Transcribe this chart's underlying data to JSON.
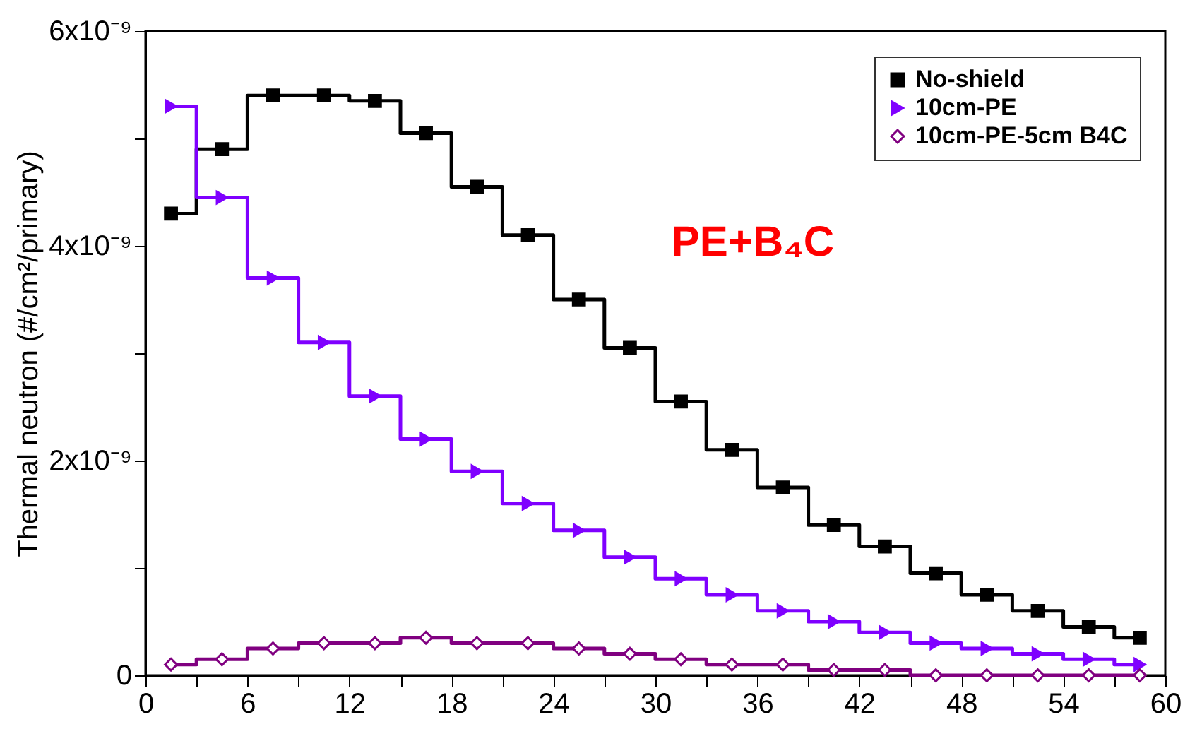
{
  "chart_data": {
    "type": "step",
    "ylabel": "Thermal neutron (#/cm²/primary)",
    "x": [
      1.5,
      4.5,
      7.5,
      10.5,
      13.5,
      16.5,
      19.5,
      22.5,
      25.5,
      28.5,
      31.5,
      34.5,
      37.5,
      40.5,
      43.5,
      46.5,
      49.5,
      52.5,
      55.5,
      58.5
    ],
    "series": [
      {
        "name": "No-shield",
        "color": "#000000",
        "marker": "square",
        "values": [
          4.3e-09,
          4.9e-09,
          5.4e-09,
          5.4e-09,
          5.35e-09,
          5.05e-09,
          4.55e-09,
          4.1e-09,
          3.5e-09,
          3.05e-09,
          2.55e-09,
          2.1e-09,
          1.75e-09,
          1.4e-09,
          1.2e-09,
          9.5e-10,
          7.5e-10,
          6e-10,
          4.5e-10,
          3.5e-10
        ]
      },
      {
        "name": "10cm-PE",
        "color": "#7f00ff",
        "marker": "triangle",
        "values": [
          5.3e-09,
          4.45e-09,
          3.7e-09,
          3.1e-09,
          2.6e-09,
          2.2e-09,
          1.9e-09,
          1.6e-09,
          1.35e-09,
          1.1e-09,
          9e-10,
          7.5e-10,
          6e-10,
          5e-10,
          4e-10,
          3e-10,
          2.5e-10,
          2e-10,
          1.5e-10,
          1e-10
        ]
      },
      {
        "name": "10cm-PE-5cm B4C",
        "color": "#800080",
        "marker": "diamond",
        "values": [
          1e-10,
          1.5e-10,
          2.5e-10,
          3e-10,
          3e-10,
          3.5e-10,
          3e-10,
          3e-10,
          2.5e-10,
          2e-10,
          1.5e-10,
          1e-10,
          1e-10,
          5e-11,
          5e-11,
          0,
          0,
          0,
          0,
          0
        ]
      }
    ],
    "xlim": [
      0,
      60
    ],
    "xticks": [
      0,
      {
        "value": 3,
        "label": null
      },
      6,
      {
        "value": 9,
        "label": null
      },
      12,
      {
        "value": 15,
        "label": null
      },
      18,
      {
        "value": 21,
        "label": null
      },
      24,
      {
        "value": 27,
        "label": null
      },
      30,
      {
        "value": 33,
        "label": null
      },
      36,
      {
        "value": 39,
        "label": null
      },
      42,
      {
        "value": 45,
        "label": null
      },
      48,
      {
        "value": 51,
        "label": null
      },
      54,
      {
        "value": 57,
        "label": null
      },
      60
    ],
    "ylim": [
      0,
      6e-09
    ],
    "yticks": [
      0,
      {
        "value": 1e-09,
        "label": null
      },
      {
        "value": 2e-09,
        "label": "2x10⁻⁹"
      },
      {
        "value": 3e-09,
        "label": null
      },
      {
        "value": 4e-09,
        "label": "4x10⁻⁹"
      },
      {
        "value": 5e-09,
        "label": null
      },
      {
        "value": 6e-09,
        "label": "6x10⁻⁹"
      }
    ],
    "annotations": [
      "PE+B₄C"
    ],
    "legend": "top right",
    "grid": false,
    "line_style": "solid"
  }
}
